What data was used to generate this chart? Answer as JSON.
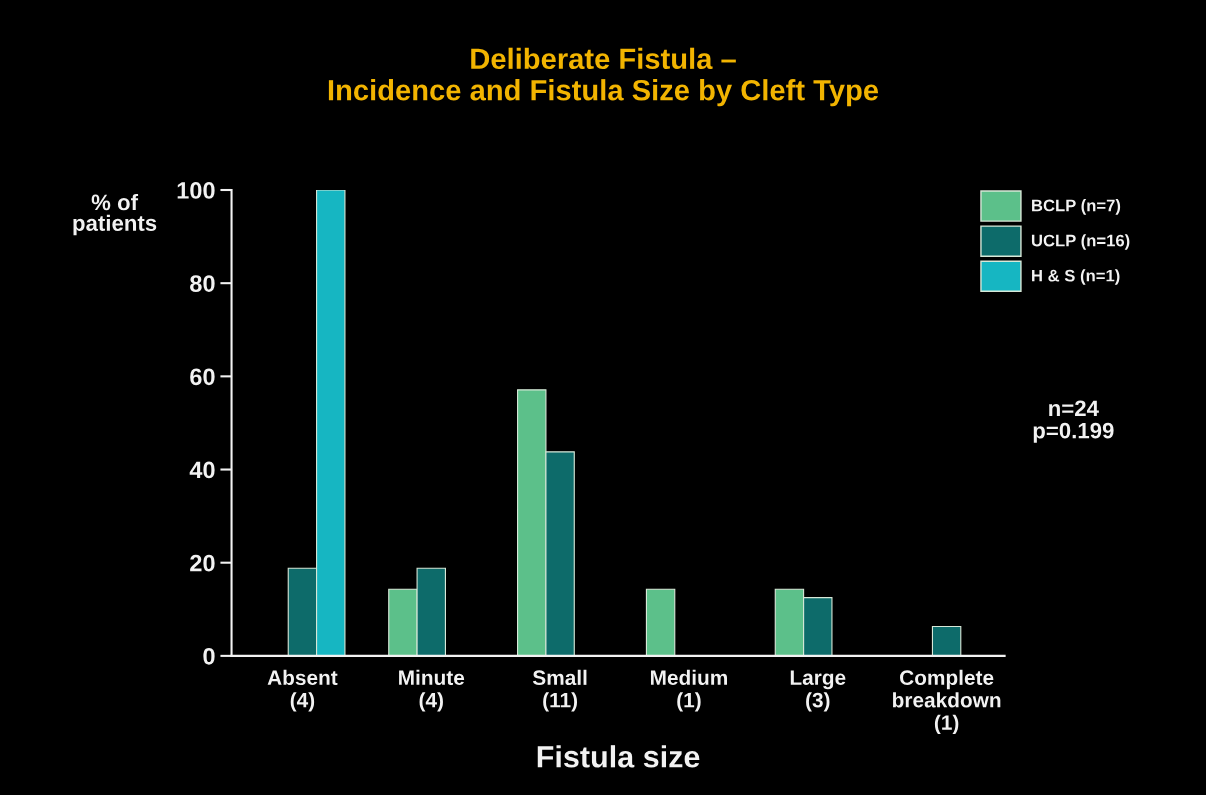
{
  "chart_data": {
    "type": "bar",
    "title": "Deliberate Fistula –\nIncidence and Fistula Size by Cleft Type",
    "categories": [
      "Absent\n(4)",
      "Minute\n(4)",
      "Small\n(11)",
      "Medium\n(1)",
      "Large\n(3)",
      "Complete\nbreakdown\n(1)"
    ],
    "series": [
      {
        "name": "BCLP (n=7)",
        "color": "#5cc08a",
        "values": [
          null,
          14.3,
          57.1,
          14.3,
          14.3,
          null
        ]
      },
      {
        "name": "UCLP (n=16)",
        "color": "#0d6b6a",
        "values": [
          18.8,
          18.8,
          43.8,
          null,
          12.5,
          6.3
        ]
      },
      {
        "name": "H & S (n=1)",
        "color": "#16b6c2",
        "values": [
          100,
          null,
          null,
          null,
          null,
          null
        ]
      }
    ],
    "xlabel": "Fistula size",
    "ylabel": "% of\npatients",
    "ylim": [
      0,
      100
    ],
    "yticks": [
      0,
      20,
      40,
      60,
      80,
      100
    ],
    "annotations": [
      "n=24\np=0.199"
    ],
    "grid": false,
    "legend": "top right"
  }
}
